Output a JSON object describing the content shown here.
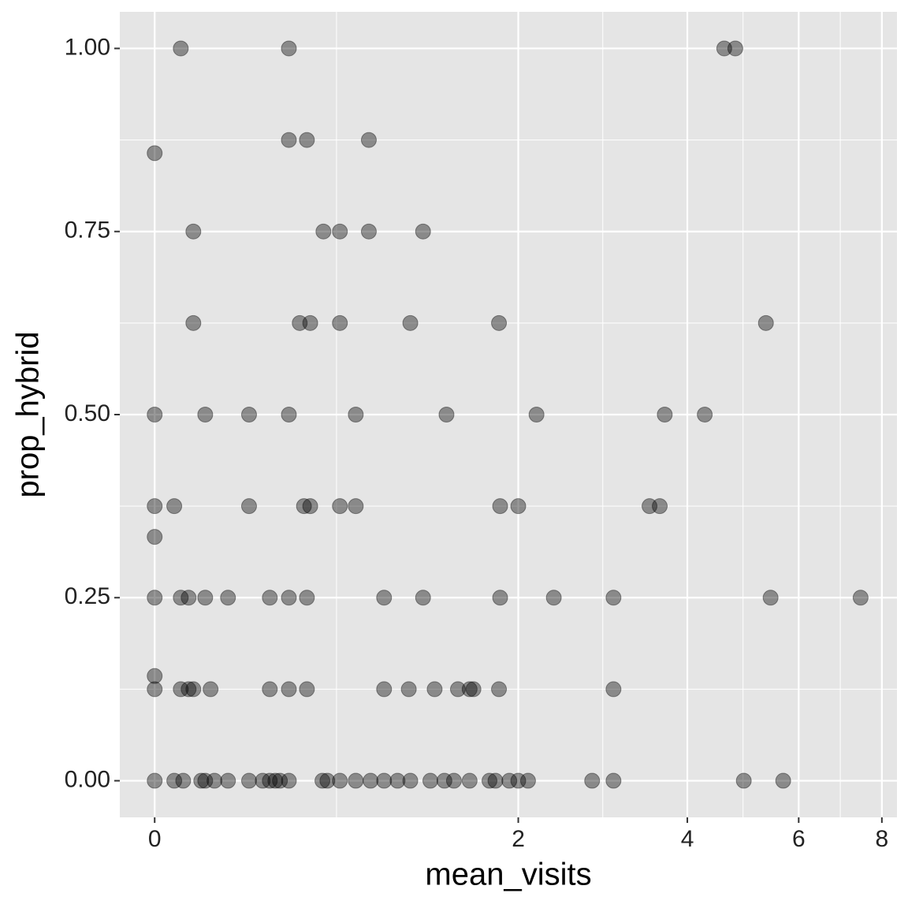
{
  "chart_data": {
    "type": "scatter",
    "x_label": "mean_visits",
    "y_label": "prop_hybrid",
    "x": [
      0.082,
      0.5,
      4.59,
      4.78,
      0,
      0.5,
      0.584,
      0.91,
      0.124,
      0.665,
      0.75,
      0.91,
      1.25,
      0.124,
      0.55,
      0.6,
      0.75,
      1.165,
      1.83,
      5.34,
      0,
      0.165,
      0.33,
      0.5,
      0.836,
      1.415,
      2.17,
      3.67,
      4.27,
      0,
      0.061,
      0.33,
      0.57,
      0.6,
      0.75,
      0.836,
      1.84,
      2.0,
      3.46,
      3.6,
      0,
      0,
      0.082,
      0.108,
      0.165,
      0.248,
      0.416,
      0.5,
      0.584,
      1.0,
      1.25,
      1.84,
      2.34,
      3.0,
      5.43,
      7.44,
      0,
      0,
      0.082,
      0.108,
      0.124,
      0.184,
      0.416,
      0.5,
      0.584,
      1.0,
      1.155,
      1.33,
      1.5,
      1.59,
      1.62,
      1.83,
      3.0,
      0,
      0.061,
      0.09,
      0.151,
      0.165,
      0.198,
      0.248,
      0.33,
      0.386,
      0.416,
      0.44,
      0.46,
      0.5,
      0.66,
      0.685,
      0.75,
      0.836,
      0.92,
      1.0,
      1.083,
      1.165,
      1.3,
      1.4,
      1.47,
      1.59,
      1.75,
      1.8,
      1.92,
      2.0,
      2.09,
      2.75,
      3.0,
      4.93,
      5.68
    ],
    "y": [
      1,
      1,
      1,
      1,
      0.857,
      0.875,
      0.875,
      0.875,
      0.75,
      0.75,
      0.75,
      0.75,
      0.75,
      0.625,
      0.625,
      0.625,
      0.625,
      0.625,
      0.625,
      0.625,
      0.5,
      0.5,
      0.5,
      0.5,
      0.5,
      0.5,
      0.5,
      0.5,
      0.5,
      0.375,
      0.375,
      0.375,
      0.375,
      0.375,
      0.375,
      0.375,
      0.375,
      0.375,
      0.375,
      0.375,
      0.333,
      0.25,
      0.25,
      0.25,
      0.25,
      0.25,
      0.25,
      0.25,
      0.25,
      0.25,
      0.25,
      0.25,
      0.25,
      0.25,
      0.25,
      0.25,
      0.143,
      0.125,
      0.125,
      0.125,
      0.125,
      0.125,
      0.125,
      0.125,
      0.125,
      0.125,
      0.125,
      0.125,
      0.125,
      0.125,
      0.125,
      0.125,
      0.125,
      0,
      0,
      0,
      0,
      0,
      0,
      0,
      0,
      0,
      0,
      0,
      0,
      0,
      0,
      0,
      0,
      0,
      0,
      0,
      0,
      0,
      0,
      0,
      0,
      0,
      0,
      0,
      0,
      0,
      0,
      0,
      0,
      0,
      0
    ],
    "color": "#000000",
    "point_alpha": 0.4,
    "xscale": "log1p",
    "xlim": [
      -0.1,
      8.42
    ],
    "xticks": [
      0,
      2,
      4,
      6,
      8
    ],
    "ylim": [
      -0.05,
      1.05
    ],
    "yticks": [
      {
        "value": 0,
        "label": "0.00"
      },
      {
        "value": 0.25,
        "label": "0.25"
      },
      {
        "value": 0.5,
        "label": "0.50"
      },
      {
        "value": 0.75,
        "label": "0.75"
      },
      {
        "value": 1,
        "label": "1.00"
      }
    ],
    "grid": true
  }
}
